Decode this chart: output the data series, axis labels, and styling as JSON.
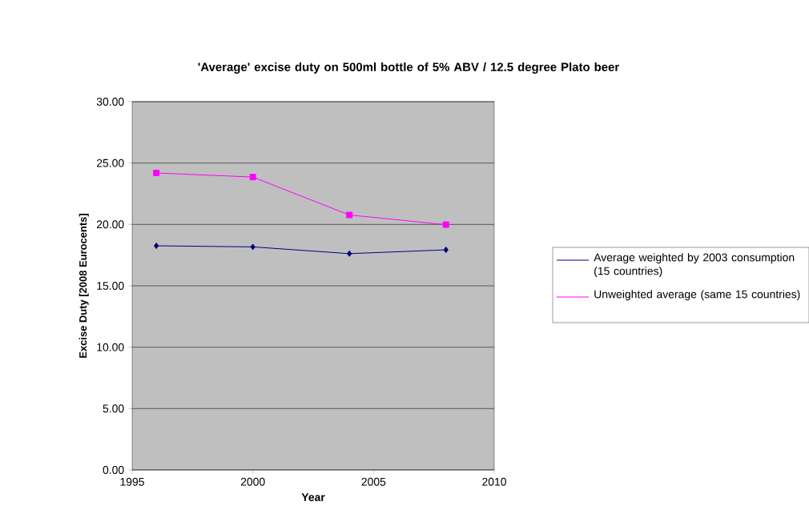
{
  "chart_data": {
    "type": "line",
    "title": "'Average' excise duty on 500ml bottle of 5% ABV / 12.5 degree Plato beer",
    "xlabel": "Year",
    "ylabel": "Excise Duty [2008 Eurocents]",
    "x": [
      1996,
      2000,
      2004,
      2008
    ],
    "series": [
      {
        "name": "Average weighted by 2003 consumption (15 countries)",
        "color": "#000080",
        "marker": "diamond",
        "values": [
          18.26,
          18.17,
          17.62,
          17.93
        ]
      },
      {
        "name": "Unweighted average (same 15 countries)",
        "color": "#ff00ff",
        "marker": "square",
        "values": [
          24.19,
          23.86,
          20.77,
          19.98
        ]
      }
    ],
    "xlim": [
      1995,
      2010
    ],
    "xticks": [
      1995,
      2000,
      2005,
      2010
    ],
    "ylim": [
      0,
      30
    ],
    "yticks": [
      {
        "value": 0,
        "label": "0.00"
      },
      {
        "value": 5,
        "label": "5.00"
      },
      {
        "value": 10,
        "label": "10.00"
      },
      {
        "value": 15,
        "label": "15.00"
      },
      {
        "value": 20,
        "label": "20.00"
      },
      {
        "value": 25,
        "label": "25.00"
      },
      {
        "value": 30,
        "label": "30.00"
      }
    ],
    "grid": "y",
    "legend": "right"
  }
}
